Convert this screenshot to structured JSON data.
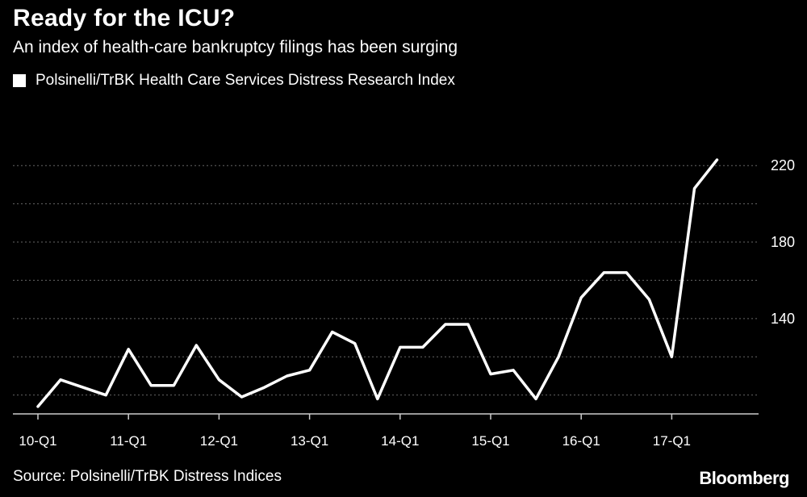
{
  "header": {
    "title": "Ready for the ICU?",
    "subtitle": "An index of health-care bankruptcy filings has been surging"
  },
  "footer": {
    "source": "Source: Polsinelli/TrBK Distress Indices",
    "brand": "Bloomberg"
  },
  "colors": {
    "background": "#000000",
    "line": "#ffffff",
    "grid": "#666666",
    "text": "#ffffff"
  },
  "chart_data": {
    "type": "line",
    "title": "Ready for the ICU?",
    "subtitle": "An index of health-care bankruptcy filings has been surging",
    "xlabel": "",
    "ylabel": "",
    "x": [
      "10-Q1",
      "10-Q2",
      "10-Q3",
      "10-Q4",
      "11-Q1",
      "11-Q2",
      "11-Q3",
      "11-Q4",
      "12-Q1",
      "12-Q2",
      "12-Q3",
      "12-Q4",
      "13-Q1",
      "13-Q2",
      "13-Q3",
      "13-Q4",
      "14-Q1",
      "14-Q2",
      "14-Q3",
      "14-Q4",
      "15-Q1",
      "15-Q2",
      "15-Q3",
      "15-Q4",
      "16-Q1",
      "16-Q2",
      "16-Q3",
      "16-Q4",
      "17-Q1",
      "17-Q2",
      "17-Q3"
    ],
    "x_tick_labels": [
      "10-Q1",
      "11-Q1",
      "12-Q1",
      "13-Q1",
      "14-Q1",
      "15-Q1",
      "16-Q1",
      "17-Q1"
    ],
    "series": [
      {
        "name": "Polsinelli/TrBK Health Care Services Distress Research Index",
        "values": [
          94,
          108,
          104,
          100,
          124,
          105,
          105,
          126,
          108,
          99,
          104,
          110,
          113,
          133,
          127,
          98,
          125,
          125,
          137,
          137,
          111,
          113,
          98,
          120,
          151,
          164,
          164,
          150,
          120,
          208,
          223
        ]
      }
    ],
    "y_tick_labels": [
      "220",
      "180",
      "140"
    ],
    "y_ticks": [
      100,
      120,
      140,
      160,
      180,
      200,
      220
    ],
    "ylim": [
      91,
      234
    ],
    "grid": true,
    "y_axis_side": "right",
    "legend_position": "top-left"
  }
}
